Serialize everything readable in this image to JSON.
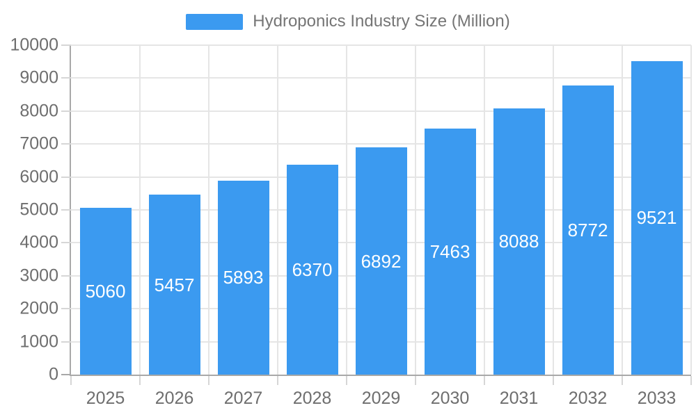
{
  "legend": {
    "label": "Hydroponics Industry Size (Million)"
  },
  "chart_data": {
    "type": "bar",
    "title": "Hydroponics Industry Size (Million)",
    "categories": [
      "2025",
      "2026",
      "2027",
      "2028",
      "2029",
      "2030",
      "2031",
      "2032",
      "2033"
    ],
    "values": [
      5060,
      5457,
      5893,
      6370,
      6892,
      7463,
      8088,
      8772,
      9521
    ],
    "xlabel": "",
    "ylabel": "",
    "ylim": [
      0,
      10000
    ],
    "ytick_interval": 1000,
    "ytick_labels": [
      "0",
      "1000",
      "2000",
      "3000",
      "4000",
      "5000",
      "6000",
      "7000",
      "8000",
      "9000",
      "10000"
    ],
    "grid": true,
    "legend_position": "top-center",
    "colors": {
      "bar": "#3B9AF0",
      "bar_label": "#FFFFFF",
      "grid": "#E5E5E5",
      "axis_line": "#A8A8A8",
      "tick": "#D6D6D6",
      "axis_text": "#6E6E6E",
      "legend_text": "#757575"
    }
  }
}
